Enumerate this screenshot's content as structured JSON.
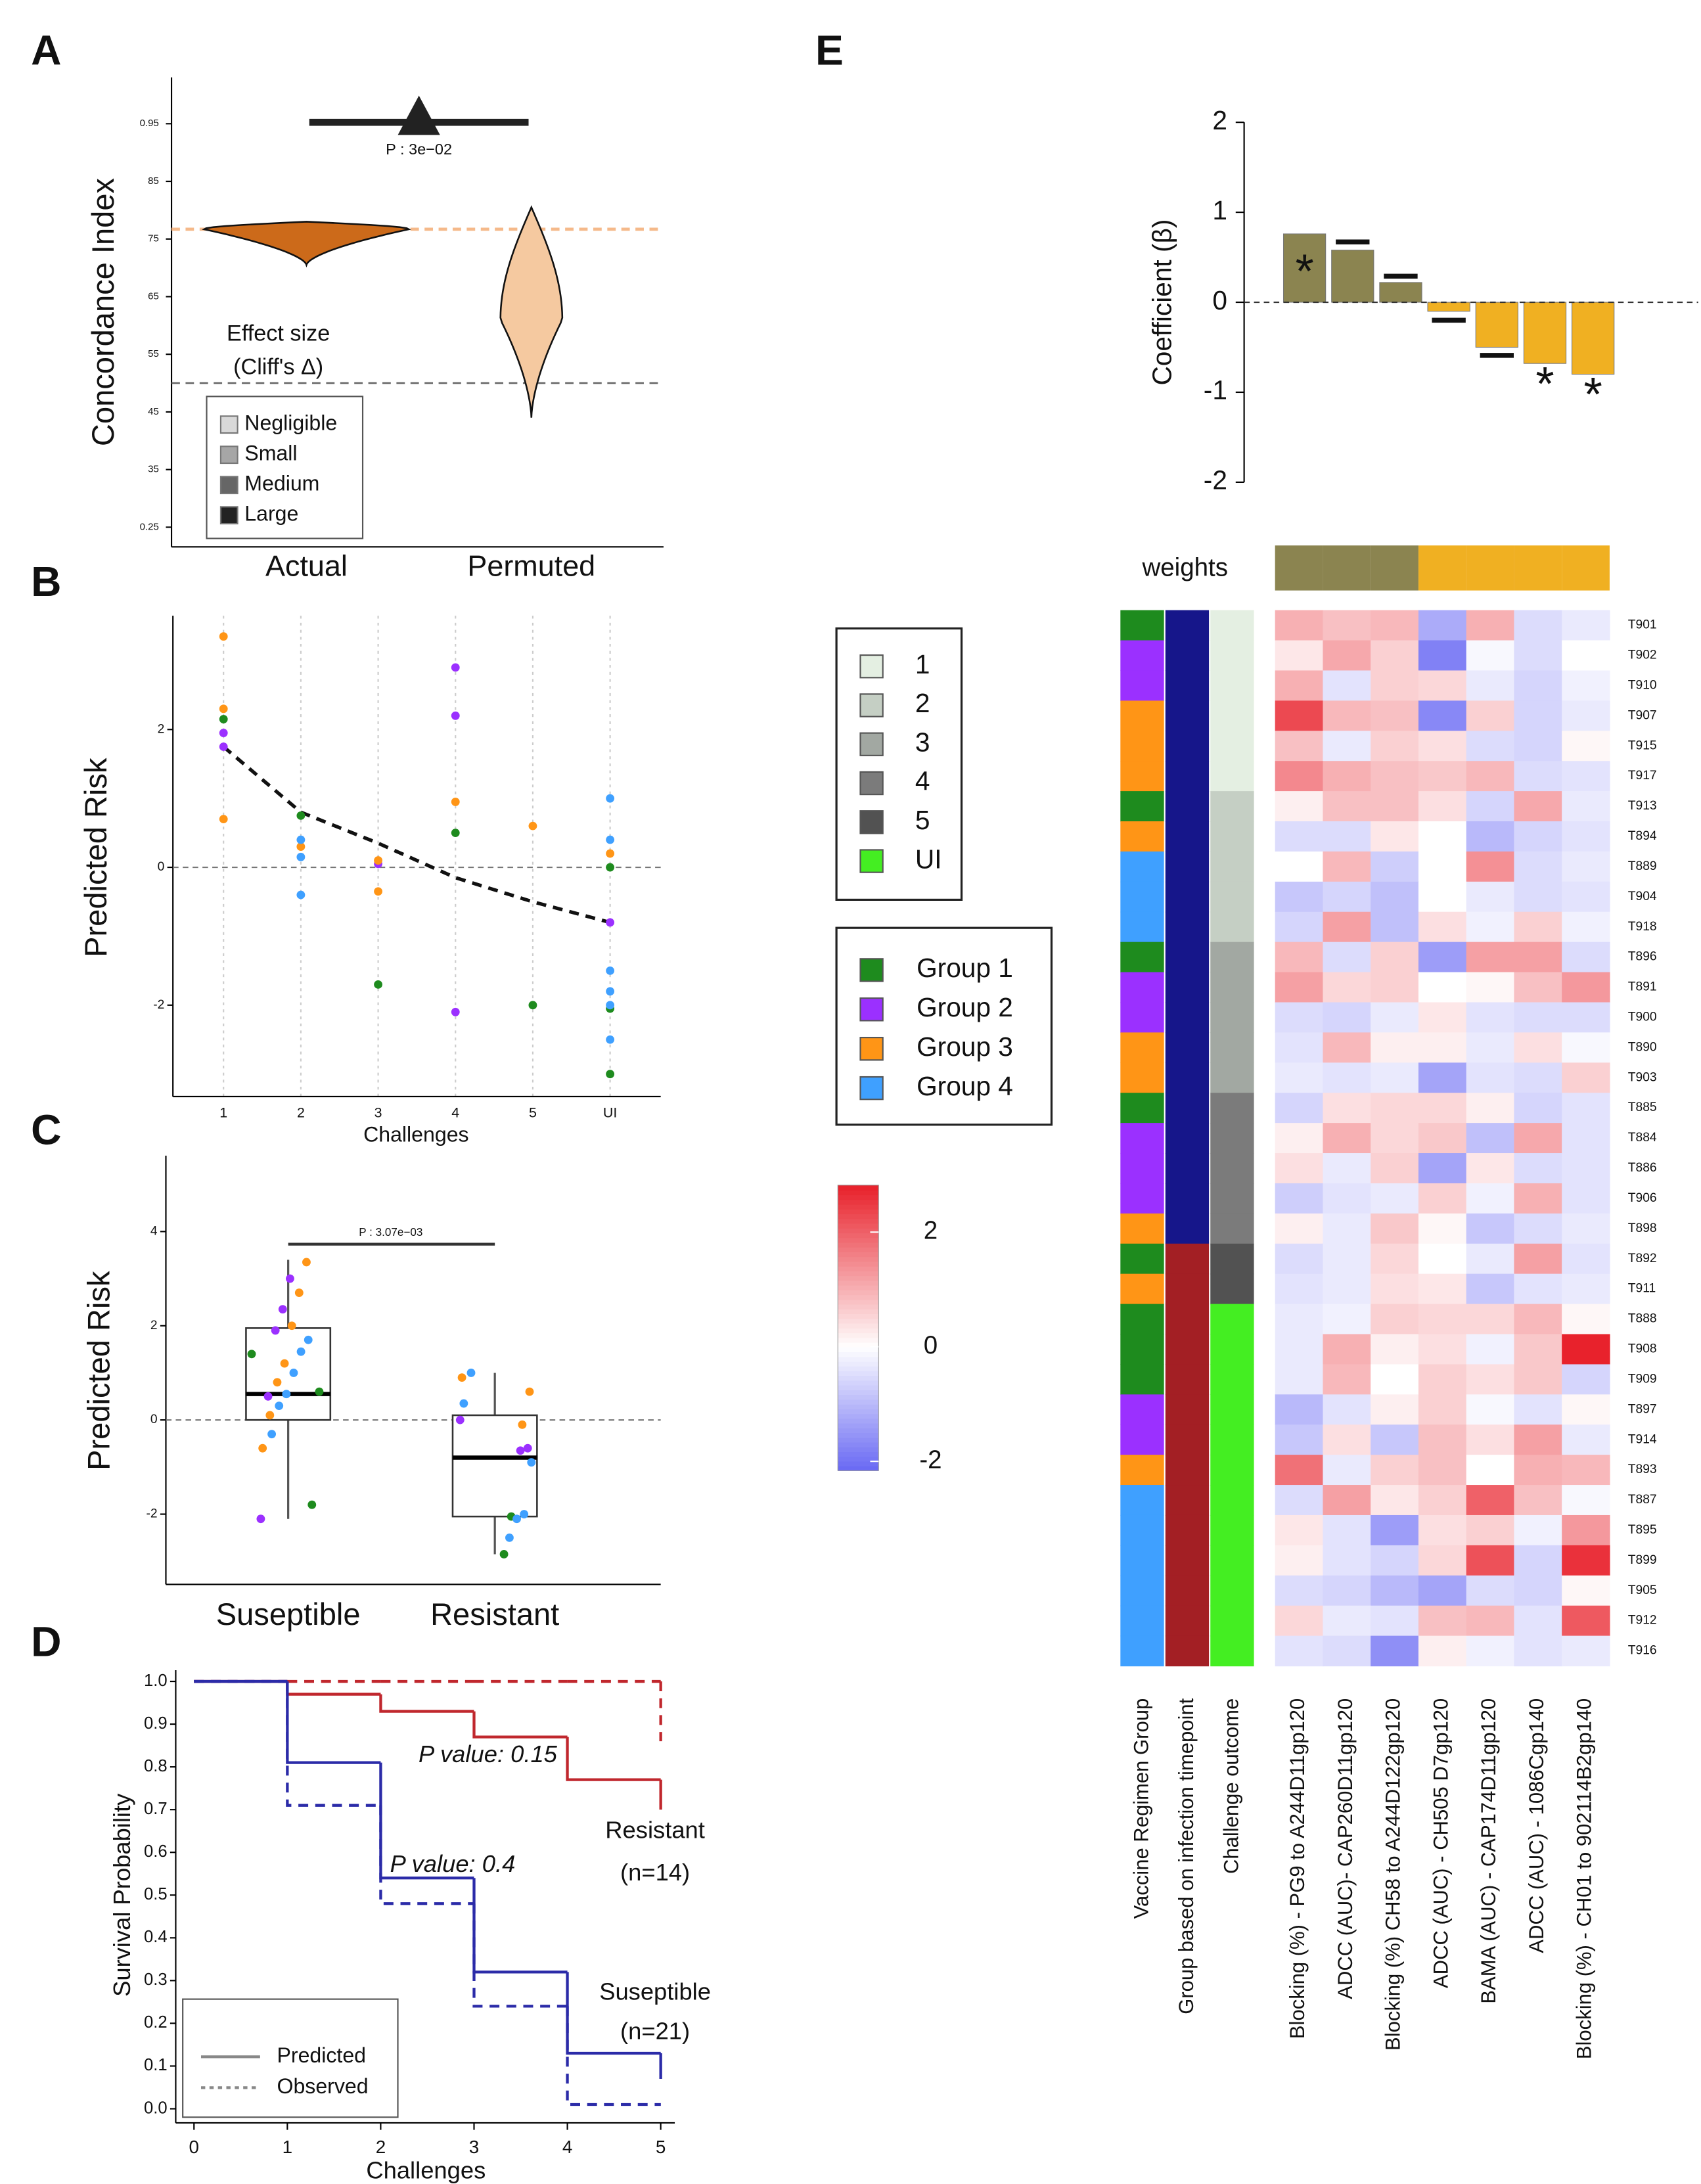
{
  "chart_data": [
    {
      "type": "violin",
      "panel": "A",
      "ylabel": "Concordance Index",
      "categories": [
        "Actual",
        "Permuted"
      ],
      "category_colors": [
        "#d9761f",
        "#f3c9a5"
      ],
      "fill_colors": [
        "#cc6a1a",
        "#f5c9a0"
      ],
      "min": [
        0.705,
        0.44
      ],
      "median": [
        0.767,
        0.61
      ],
      "max": [
        0.78,
        0.805
      ],
      "ylim": [
        0.22,
        1.0
      ],
      "yticks": [
        0.25,
        {
          "value": 0.35,
          "label": "35"
        },
        {
          "value": 0.45,
          "label": "45"
        },
        {
          "value": 0.55,
          "label": "55"
        },
        {
          "value": 0.65,
          "label": "65"
        },
        {
          "value": 0.75,
          "label": "75"
        },
        {
          "value": 0.85,
          "label": "85"
        },
        0.95
      ],
      "reference_lines": [
        {
          "value": 0.767,
          "color": "#f5b98a"
        },
        {
          "value": 0.5,
          "color": "#666666"
        }
      ],
      "comparison": {
        "label": "P : 3e−02",
        "color": "#222222"
      },
      "legend_title": [
        "Effect size",
        "(Cliff's Δ)"
      ],
      "legend": [
        {
          "name": "Negligible",
          "color": "#d9d9d9"
        },
        {
          "name": "Small",
          "color": "#a6a6a6"
        },
        {
          "name": "Medium",
          "color": "#666666"
        },
        {
          "name": "Large",
          "color": "#222222"
        }
      ]
    },
    {
      "type": "strip",
      "panel": "B",
      "ylabel": "Predicted Risk",
      "xlabel": "Challenges",
      "categories": [
        "1",
        "2",
        "3",
        "4",
        "5",
        "UI"
      ],
      "grid": true,
      "ylim": [
        -3.3,
        3.63
      ],
      "yticks": [
        -2,
        0,
        2
      ],
      "reference_line": 0,
      "trend": {
        "x": [
          "1",
          "2",
          "3",
          "4",
          "5",
          "UI"
        ],
        "values": [
          1.75,
          0.8,
          0.35,
          -0.15,
          -0.5,
          -0.8
        ]
      },
      "series": [
        {
          "color": "#1e8b1e",
          "x": [
            "1",
            "2",
            "3",
            "4",
            "5",
            "UI",
            "UI",
            "UI"
          ],
          "values": [
            2.15,
            0.75,
            -1.7,
            0.5,
            -2.0,
            0.0,
            -2.05,
            -3.0
          ]
        },
        {
          "color": "#9b30ff",
          "x": [
            "1",
            "1",
            "3",
            "4",
            "4",
            "4",
            "UI"
          ],
          "values": [
            1.95,
            1.75,
            0.05,
            2.9,
            2.2,
            -2.1,
            -0.8
          ]
        },
        {
          "color": "#ff9516",
          "x": [
            "1",
            "1",
            "1",
            "2",
            "3",
            "3",
            "4",
            "5",
            "UI"
          ],
          "values": [
            3.35,
            2.3,
            0.7,
            0.3,
            0.1,
            -0.35,
            0.95,
            0.6,
            0.2
          ]
        },
        {
          "color": "#3fa0ff",
          "x": [
            "2",
            "2",
            "2",
            "UI",
            "UI",
            "UI",
            "UI",
            "UI",
            "UI"
          ],
          "values": [
            0.4,
            0.15,
            -0.4,
            1.0,
            0.4,
            -1.5,
            -1.8,
            -2.0,
            -2.5
          ]
        }
      ]
    },
    {
      "type": "box",
      "panel": "C",
      "ylabel": "Predicted Risk",
      "categories": [
        "Suseptible",
        "Resistant"
      ],
      "category_colors": [
        "#2b2ba8",
        "#c0272d"
      ],
      "ylim": [
        -3.5,
        5.6
      ],
      "yticks": [
        -2,
        0,
        2,
        4
      ],
      "reference_line": 0,
      "min": [
        -2.1,
        -2.85
      ],
      "q1": [
        0.0,
        -2.05
      ],
      "median": [
        0.55,
        -0.8
      ],
      "q3": [
        1.95,
        0.1
      ],
      "max": [
        3.4,
        1.0
      ],
      "comparison": {
        "label": "P : 3.07e−03"
      },
      "series": [
        {
          "color": "#1e8b1e",
          "x": [
            "Suseptible",
            "Suseptible",
            "Suseptible",
            "Resistant",
            "Resistant"
          ],
          "values": [
            1.4,
            0.6,
            -1.8,
            -2.05,
            -2.85
          ]
        },
        {
          "color": "#9b30ff",
          "x": [
            "Suseptible",
            "Suseptible",
            "Suseptible",
            "Suseptible",
            "Suseptible",
            "Resistant",
            "Resistant",
            "Resistant"
          ],
          "values": [
            3.0,
            2.35,
            1.9,
            0.5,
            -2.1,
            0.0,
            -0.6,
            -0.65
          ]
        },
        {
          "color": "#ff9516",
          "x": [
            "Suseptible",
            "Suseptible",
            "Suseptible",
            "Suseptible",
            "Suseptible",
            "Suseptible",
            "Suseptible",
            "Resistant",
            "Resistant",
            "Resistant"
          ],
          "values": [
            3.35,
            2.7,
            2.0,
            1.2,
            0.8,
            0.1,
            -0.6,
            0.9,
            0.6,
            -0.1
          ]
        },
        {
          "color": "#3fa0ff",
          "x": [
            "Suseptible",
            "Suseptible",
            "Suseptible",
            "Suseptible",
            "Suseptible",
            "Suseptible",
            "Resistant",
            "Resistant",
            "Resistant",
            "Resistant",
            "Resistant",
            "Resistant"
          ],
          "values": [
            1.7,
            1.45,
            1.0,
            0.55,
            0.3,
            -0.3,
            1.0,
            0.35,
            -0.9,
            -2.0,
            -2.1,
            -2.5
          ]
        }
      ]
    },
    {
      "type": "survival",
      "panel": "D",
      "ylabel": "Survival Probability",
      "xlabel": "Challenges",
      "x": [
        0,
        1,
        2,
        3,
        4,
        5
      ],
      "xlim": [
        0,
        5
      ],
      "xticks": [
        0,
        1,
        2,
        3,
        4,
        5
      ],
      "ylim": [
        0,
        1
      ],
      "yticks": [
        {
          "value": 0,
          "label": "0.0"
        },
        0.1,
        0.2,
        0.3,
        0.4,
        0.5,
        0.6,
        0.7,
        0.8,
        0.9,
        {
          "value": 1,
          "label": "1.0"
        }
      ],
      "groups": [
        {
          "name": "Resistant",
          "n_label": "(n=14)",
          "p_label": "P value: 0.15",
          "color": "#c0272d",
          "predicted": [
            1.0,
            0.97,
            0.93,
            0.87,
            0.77,
            0.7
          ],
          "observed": [
            1.0,
            1.0,
            1.0,
            1.0,
            1.0,
            0.86
          ]
        },
        {
          "name": "Suseptible",
          "n_label": "(n=21)",
          "p_label": "P value: 0.4",
          "color": "#2b2ba8",
          "predicted": [
            1.0,
            0.81,
            0.54,
            0.32,
            0.13,
            0.07
          ],
          "observed": [
            1.0,
            0.71,
            0.48,
            0.24,
            0.01,
            0.01
          ]
        }
      ],
      "legend": [
        "Predicted",
        "Observed"
      ]
    },
    {
      "type": "bar",
      "panel": "E",
      "ylabel": "Coefficient (β)",
      "values": [
        0.76,
        0.58,
        0.22,
        -0.1,
        -0.5,
        -0.68,
        -0.8
      ],
      "colors": [
        "#8b8450",
        "#8b8450",
        "#8b8450",
        "#f0b022",
        "#f0b022",
        "#f0b022",
        "#f0b022"
      ],
      "reference_marks": [
        null,
        0.67,
        0.29,
        -0.2,
        -0.59,
        null,
        null
      ],
      "significance": [
        "*",
        null,
        null,
        null,
        null,
        "*",
        "*"
      ],
      "ylim": [
        -2,
        2
      ],
      "yticks": [
        -2,
        -1,
        0,
        1,
        2
      ],
      "reference_line": 0
    },
    {
      "type": "heatmap",
      "weights_label": "weights",
      "weight_colors": [
        "#8b8450",
        "#8b8450",
        "#8b8450",
        "#f0b022",
        "#f0b022",
        "#f0b022",
        "#f0b022"
      ],
      "columns": [
        "Blocking (%) - PG9 to A244D11gp120",
        "ADCC (AUC)- CAP260D11gp120",
        "Blocking (%) CH58 to A244D122gp120",
        "ADCC (AUC) - CH505 D7gp120",
        "BAMA (AUC) - CAP174D11gp120",
        "ADCC (AUC) - 1086Cgp140",
        "Blocking (%) - CH01 to 902114B2gp140"
      ],
      "annotation_labels": [
        "Vaccine Regimen Group",
        "Group based on infection timepoint",
        "Challenge outcome"
      ],
      "rows": [
        "T901",
        "T902",
        "T910",
        "T907",
        "T915",
        "T917",
        "T913",
        "T894",
        "T889",
        "T904",
        "T918",
        "T896",
        "T891",
        "T900",
        "T890",
        "T903",
        "T885",
        "T884",
        "T886",
        "T906",
        "T898",
        "T892",
        "T911",
        "T888",
        "T908",
        "T909",
        "T897",
        "T914",
        "T893",
        "T887",
        "T895",
        "T899",
        "T905",
        "T912",
        "T916"
      ],
      "regimen_group": [
        "Group 1",
        "Group 2",
        "Group 2",
        "Group 3",
        "Group 3",
        "Group 3",
        "Group 1",
        "Group 3",
        "Group 4",
        "Group 4",
        "Group 4",
        "Group 1",
        "Group 2",
        "Group 2",
        "Group 3",
        "Group 3",
        "Group 1",
        "Group 2",
        "Group 2",
        "Group 2",
        "Group 3",
        "Group 1",
        "Group 3",
        "Group 1",
        "Group 1",
        "Group 1",
        "Group 2",
        "Group 2",
        "Group 3",
        "Group 4",
        "Group 4",
        "Group 4",
        "Group 4",
        "Group 4",
        "Group 4"
      ],
      "infection_colors": [
        "#16168a",
        "#16168a",
        "#16168a",
        "#16168a",
        "#16168a",
        "#16168a",
        "#16168a",
        "#16168a",
        "#16168a",
        "#16168a",
        "#16168a",
        "#16168a",
        "#16168a",
        "#16168a",
        "#16168a",
        "#16168a",
        "#16168a",
        "#16168a",
        "#16168a",
        "#16168a",
        "#16168a",
        "#a31f24",
        "#a31f24",
        "#a31f24",
        "#a31f24",
        "#a31f24",
        "#a31f24",
        "#a31f24",
        "#a31f24",
        "#a31f24",
        "#a31f24",
        "#a31f24",
        "#a31f24",
        "#a31f24",
        "#a31f24"
      ],
      "outcome": [
        "1",
        "1",
        "1",
        "1",
        "1",
        "1",
        "2",
        "2",
        "2",
        "2",
        "2",
        "3",
        "3",
        "3",
        "3",
        "3",
        "4",
        "4",
        "4",
        "4",
        "4",
        "5",
        "5",
        "UI",
        "UI",
        "UI",
        "UI",
        "UI",
        "UI",
        "UI",
        "UI",
        "UI",
        "UI",
        "UI",
        "UI"
      ],
      "values": [
        [
          1.0,
          0.8,
          0.9,
          -1.2,
          1.0,
          -0.5,
          -0.3
        ],
        [
          0.3,
          1.1,
          0.6,
          -1.8,
          -0.1,
          -0.5,
          0.0
        ],
        [
          1.0,
          -0.4,
          0.6,
          0.5,
          -0.3,
          -0.6,
          -0.2
        ],
        [
          2.3,
          0.9,
          0.8,
          -1.7,
          0.6,
          -0.6,
          -0.3
        ],
        [
          0.8,
          -0.3,
          0.6,
          0.4,
          -0.5,
          -0.6,
          0.1
        ],
        [
          1.5,
          1.0,
          0.8,
          0.7,
          0.9,
          -0.5,
          -0.4
        ],
        [
          0.2,
          0.8,
          0.8,
          0.4,
          -0.6,
          1.1,
          -0.3
        ],
        [
          -0.5,
          -0.5,
          0.3,
          0.0,
          -1.0,
          -0.6,
          -0.4
        ],
        [
          0.0,
          0.9,
          -0.7,
          0.0,
          1.4,
          -0.5,
          -0.3
        ],
        [
          -0.8,
          -0.6,
          -0.9,
          0.0,
          -0.3,
          -0.5,
          -0.4
        ],
        [
          -0.6,
          1.2,
          -0.9,
          0.4,
          -0.2,
          0.6,
          -0.2
        ],
        [
          0.9,
          -0.5,
          0.6,
          -1.4,
          1.2,
          1.2,
          -0.5
        ],
        [
          1.2,
          0.5,
          0.6,
          0.0,
          0.1,
          0.8,
          1.3
        ],
        [
          -0.5,
          -0.6,
          -0.3,
          0.3,
          -0.4,
          -0.5,
          -0.5
        ],
        [
          -0.4,
          0.9,
          0.2,
          0.2,
          -0.3,
          0.4,
          -0.1
        ],
        [
          -0.3,
          -0.4,
          -0.3,
          -1.3,
          -0.4,
          -0.5,
          0.6
        ],
        [
          -0.6,
          0.4,
          0.5,
          0.5,
          0.2,
          -0.6,
          -0.4
        ],
        [
          0.2,
          1.0,
          0.5,
          0.7,
          -0.9,
          1.1,
          -0.4
        ],
        [
          0.4,
          -0.3,
          0.6,
          -1.3,
          0.3,
          -0.5,
          -0.4
        ],
        [
          -0.7,
          -0.4,
          -0.3,
          0.6,
          -0.2,
          1.0,
          -0.4
        ],
        [
          0.2,
          -0.3,
          0.7,
          0.1,
          -0.8,
          -0.5,
          -0.3
        ],
        [
          -0.5,
          -0.3,
          0.5,
          0.0,
          -0.3,
          1.2,
          -0.4
        ],
        [
          -0.4,
          -0.3,
          0.4,
          0.3,
          -0.8,
          -0.4,
          -0.3
        ],
        [
          -0.3,
          -0.2,
          0.6,
          0.5,
          0.5,
          0.9,
          0.1
        ],
        [
          -0.3,
          1.0,
          0.2,
          0.4,
          -0.2,
          0.7,
          2.8
        ],
        [
          -0.3,
          0.9,
          0.0,
          0.6,
          0.4,
          0.7,
          -0.6
        ],
        [
          -1.0,
          -0.4,
          0.2,
          0.6,
          -0.1,
          -0.4,
          0.1
        ],
        [
          -0.8,
          0.4,
          -0.8,
          0.8,
          0.4,
          1.2,
          -0.3
        ],
        [
          1.8,
          -0.3,
          0.6,
          0.8,
          0.0,
          1.0,
          0.9
        ],
        [
          -0.5,
          1.2,
          0.3,
          0.6,
          2.0,
          0.8,
          -0.1
        ],
        [
          0.3,
          -0.4,
          -1.4,
          0.4,
          0.6,
          -0.2,
          1.3
        ],
        [
          0.2,
          -0.4,
          -0.6,
          0.5,
          2.2,
          -0.6,
          2.6
        ],
        [
          -0.5,
          -0.6,
          -1.0,
          -1.3,
          -0.5,
          -0.6,
          0.1
        ],
        [
          0.5,
          -0.3,
          -0.4,
          0.8,
          0.9,
          -0.4,
          2.1
        ],
        [
          -0.4,
          -0.5,
          -1.6,
          0.2,
          -0.2,
          -0.4,
          -0.3
        ]
      ],
      "outcome_legend": [
        {
          "name": "1",
          "color": "#e4efe2"
        },
        {
          "name": "2",
          "color": "#c5cfc4"
        },
        {
          "name": "3",
          "color": "#a2a8a2"
        },
        {
          "name": "4",
          "color": "#7b7b7b"
        },
        {
          "name": "5",
          "color": "#525252"
        },
        {
          "name": "UI",
          "color": "#44ee22"
        }
      ],
      "group_legend": [
        {
          "name": "Group 1",
          "color": "#1e8b1e"
        },
        {
          "name": "Group 2",
          "color": "#9b30ff"
        },
        {
          "name": "Group 3",
          "color": "#ff9516"
        },
        {
          "name": "Group 4",
          "color": "#3fa0ff"
        }
      ],
      "colorbar": {
        "lim": [
          -2.16,
          2.82
        ],
        "ticks": [
          -2,
          0,
          2
        ]
      }
    }
  ]
}
